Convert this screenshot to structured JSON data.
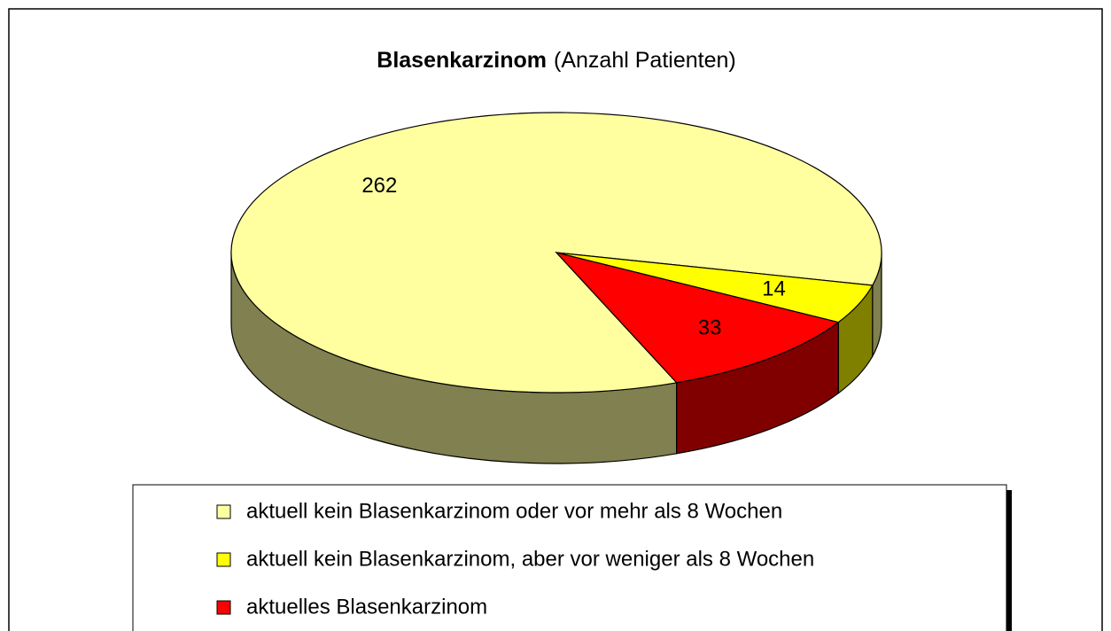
{
  "chart_data": {
    "type": "pie",
    "title": "Blasenkarzinom",
    "subtitle": "(Anzahl Patienten)",
    "categories": [
      "aktuell kein Blasenkarzinom oder vor mehr als 8 Wochen",
      "aktuell kein Blasenkarzinom, aber vor weniger als 8 Wochen",
      "aktuelles Blasenkarzinom"
    ],
    "values": [
      262,
      14,
      33
    ],
    "colors": [
      "#FFFFA0",
      "#FFFF00",
      "#FF0000"
    ],
    "legend": "bottom"
  }
}
